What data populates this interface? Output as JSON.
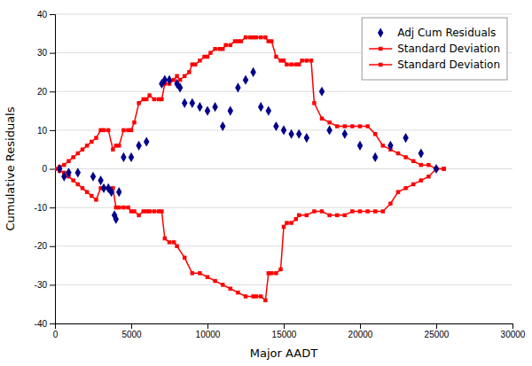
{
  "chart_data": {
    "type": "line",
    "xlabel": "Major AADT",
    "ylabel": "Cumulative Residuals",
    "xlim": [
      0,
      30000
    ],
    "ylim": [
      -40,
      40
    ],
    "xticks": [
      0,
      5000,
      10000,
      15000,
      20000,
      25000,
      30000
    ],
    "yticks": [
      -40,
      -30,
      -20,
      -10,
      0,
      10,
      20,
      30,
      40
    ],
    "grid": true,
    "legend": "upper right",
    "series": [
      {
        "name": "Adj Cum Residuals",
        "type": "scatter",
        "marker": "diamond",
        "color": "#00008B",
        "x": [
          300,
          600,
          900,
          1500,
          2500,
          3000,
          3200,
          3500,
          3700,
          3900,
          4000,
          4200,
          4500,
          5000,
          5500,
          6000,
          7000,
          7200,
          7500,
          8000,
          8200,
          8500,
          9000,
          9500,
          10000,
          10500,
          11000,
          11500,
          12000,
          12500,
          13000,
          13500,
          14000,
          14500,
          15000,
          15500,
          16000,
          16500,
          17500,
          18000,
          19000,
          20000,
          21000,
          22000,
          23000,
          24000,
          25000
        ],
        "values": [
          0,
          -2,
          -1,
          -1,
          -2,
          -3,
          -5,
          -5,
          -6,
          -12,
          -13,
          -6,
          3,
          3,
          6,
          7,
          22,
          23,
          23,
          22,
          21,
          17,
          17,
          16,
          15,
          16,
          11,
          15,
          21,
          23,
          25,
          16,
          15,
          11,
          10,
          9,
          9,
          8,
          20,
          10,
          9,
          6,
          3,
          6,
          8,
          4,
          0
        ]
      },
      {
        "name": "Standard Deviation",
        "type": "line",
        "marker": "square",
        "line_style": "solid",
        "color": "#FF0000",
        "x": [
          0,
          300,
          600,
          900,
          1200,
          1500,
          1800,
          2100,
          2400,
          2700,
          3000,
          3200,
          3500,
          3800,
          4000,
          4200,
          4500,
          4800,
          5000,
          5200,
          5500,
          5800,
          6000,
          6200,
          6500,
          6800,
          7000,
          7200,
          7500,
          7800,
          8000,
          8200,
          8500,
          8800,
          9000,
          9200,
          9500,
          9800,
          10000,
          10200,
          10500,
          10800,
          11000,
          11200,
          11500,
          11800,
          12000,
          12200,
          12500,
          12800,
          13000,
          13200,
          13500,
          13800,
          14000,
          14200,
          14500,
          14800,
          15000,
          15200,
          15500,
          15800,
          16000,
          16200,
          16500,
          16800,
          17000,
          17500,
          18000,
          18500,
          19000,
          19500,
          20000,
          20500,
          21000,
          21500,
          22000,
          22500,
          23000,
          23500,
          24000,
          24500,
          25000,
          25500
        ],
        "values": [
          0,
          0.5,
          1,
          2,
          3,
          4,
          5,
          6,
          7,
          8,
          10,
          10,
          10,
          5,
          6,
          6,
          10,
          10,
          10,
          12,
          17,
          18,
          18,
          19,
          18,
          18,
          18,
          22,
          22,
          23,
          24,
          23,
          24,
          25,
          27,
          27,
          28,
          29,
          29,
          30,
          31,
          31,
          31,
          32,
          32,
          33,
          33,
          33,
          34,
          34,
          34,
          34,
          34,
          34,
          33,
          33,
          29,
          28,
          28,
          27,
          27,
          27,
          27,
          28,
          28,
          28,
          17,
          13,
          12,
          11,
          11,
          11,
          11,
          11,
          9,
          6,
          5,
          4,
          3,
          2,
          1,
          1,
          0,
          0
        ]
      },
      {
        "name": "Standard Deviation",
        "type": "line",
        "marker": "square",
        "line_style": "solid",
        "color": "#FF0000",
        "x": [
          0,
          300,
          600,
          900,
          1200,
          1500,
          1800,
          2100,
          2400,
          2700,
          3000,
          3200,
          3500,
          3800,
          4000,
          4200,
          4500,
          4800,
          5000,
          5200,
          5500,
          5800,
          6000,
          6200,
          6500,
          6800,
          7000,
          7200,
          7500,
          7800,
          8000,
          8500,
          9000,
          9500,
          10000,
          10500,
          11000,
          11500,
          12000,
          12500,
          13000,
          13200,
          13500,
          13800,
          14000,
          14200,
          14500,
          14800,
          15000,
          15200,
          15500,
          15800,
          16000,
          16500,
          17000,
          17500,
          18000,
          18500,
          19000,
          19500,
          20000,
          20500,
          21000,
          21500,
          22000,
          22500,
          23000,
          23500,
          24000,
          24500,
          25000,
          25500
        ],
        "values": [
          0,
          -0.5,
          -1,
          -2,
          -3,
          -4,
          -5,
          -6,
          -7,
          -8,
          -5,
          -5,
          -5,
          -5,
          -10,
          -10,
          -10,
          -10,
          -11,
          -11,
          -12,
          -11,
          -11,
          -11,
          -11,
          -11,
          -11,
          -18,
          -19,
          -19,
          -20,
          -23,
          -27,
          -27,
          -28,
          -29,
          -30,
          -31,
          -32,
          -33,
          -33,
          -33,
          -33,
          -34,
          -27,
          -27,
          -27,
          -26,
          -15,
          -14,
          -14,
          -13,
          -12,
          -12,
          -11,
          -11,
          -12,
          -12,
          -12,
          -11,
          -11,
          -11,
          -11,
          -11,
          -9,
          -6,
          -5,
          -4,
          -3,
          -2,
          0,
          0
        ]
      }
    ]
  }
}
